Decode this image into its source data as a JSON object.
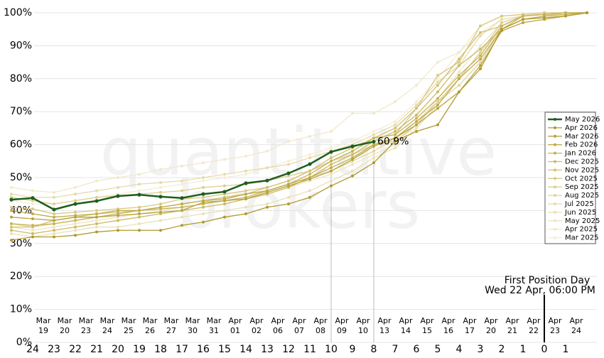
{
  "chart_data": {
    "type": "line",
    "watermark": [
      "quantitative",
      "brokers"
    ],
    "categories": [
      null,
      "24",
      "23",
      "22",
      "21",
      "20",
      "19",
      "18",
      "17",
      "16",
      "15",
      "14",
      "13",
      "12",
      "11",
      "10",
      "9",
      "8",
      "7",
      "6",
      "5",
      "4",
      "3",
      "2",
      "1",
      "0",
      "1",
      null
    ],
    "date_labels": [
      [
        "Mar",
        "19"
      ],
      [
        "Mar",
        "20"
      ],
      [
        "Mar",
        "23"
      ],
      [
        "Mar",
        "24"
      ],
      [
        "Mar",
        "25"
      ],
      [
        "Mar",
        "26"
      ],
      [
        "Mar",
        "27"
      ],
      [
        "Mar",
        "30"
      ],
      [
        "Mar",
        "31"
      ],
      [
        "Apr",
        "01"
      ],
      [
        "Apr",
        "02"
      ],
      [
        "Apr",
        "06"
      ],
      [
        "Apr",
        "07"
      ],
      [
        "Apr",
        "08"
      ],
      [
        "Apr",
        "09"
      ],
      [
        "Apr",
        "10"
      ],
      [
        "Apr",
        "13"
      ],
      [
        "Apr",
        "14"
      ],
      [
        "Apr",
        "15"
      ],
      [
        "Apr",
        "16"
      ],
      [
        "Apr",
        "17"
      ],
      [
        "Apr",
        "20"
      ],
      [
        "Apr",
        "21"
      ],
      [
        "Apr",
        "22"
      ],
      [
        "Apr",
        "23"
      ],
      [
        "Apr",
        "24"
      ]
    ],
    "ylim": [
      0,
      100
    ],
    "yticks": [
      {
        "value": 0,
        "label": "0%"
      },
      {
        "value": 10,
        "label": "10%"
      },
      {
        "value": 20,
        "label": "20%"
      },
      {
        "value": 30,
        "label": "30%"
      },
      {
        "value": 40,
        "label": "40%"
      },
      {
        "value": 50,
        "label": "50%"
      },
      {
        "value": 60,
        "label": "60%"
      },
      {
        "value": 70,
        "label": "70%"
      },
      {
        "value": 80,
        "label": "80%"
      },
      {
        "value": 90,
        "label": "90%"
      },
      {
        "value": 100,
        "label": "100%"
      }
    ],
    "grid": true,
    "legend": "right",
    "annotation": {
      "title": "First Position Day",
      "subtitle": "Wed 22 Apr, 06:00 PM"
    },
    "series": [
      {
        "name": "May 2026",
        "color": "#1e5e1e",
        "values": [
          43.3,
          43.8,
          40.3,
          42.0,
          42.9,
          44.4,
          44.8,
          44.2,
          43.8,
          45.0,
          45.7,
          48.3,
          49.1,
          51.3,
          54.1,
          57.8,
          59.5,
          60.9,
          null,
          null,
          null,
          null,
          null,
          null,
          null,
          null,
          null,
          null
        ],
        "value_labels": [
          null,
          null,
          null,
          null,
          null,
          null,
          null,
          null,
          null,
          null,
          null,
          null,
          null,
          null,
          null,
          null,
          null,
          "60.9%",
          null,
          null,
          null,
          null,
          null,
          null,
          null,
          null,
          null,
          null
        ]
      },
      {
        "name": "Apr 2026",
        "color": "#b09a2e",
        "values": [
          31,
          32,
          32,
          32.5,
          33.5,
          34,
          34,
          34,
          35.5,
          36.5,
          38,
          39,
          41,
          42,
          44,
          47.5,
          50.5,
          54.5,
          61,
          64,
          66,
          76,
          83,
          95,
          98,
          98.5,
          99,
          100
        ]
      },
      {
        "name": "Mar 2026",
        "color": "#b8a33c",
        "values": [
          38,
          37.5,
          37,
          38,
          38,
          38.5,
          39,
          39.5,
          40,
          42.5,
          43,
          43.5,
          45.5,
          47.5,
          49.5,
          52,
          55.5,
          59.5,
          62,
          66,
          71,
          76,
          84,
          94.5,
          97,
          98,
          99,
          100
        ]
      },
      {
        "name": "Feb 2026",
        "color": "#bfab4a",
        "values": [
          40,
          39,
          38,
          38.5,
          39,
          40,
          40,
          41,
          42,
          43,
          43.5,
          45,
          46,
          48,
          50,
          53,
          56,
          60,
          62,
          67,
          72,
          80,
          86,
          95,
          98,
          99,
          99.5,
          100
        ]
      },
      {
        "name": "Jan 2026",
        "color": "#c6b358",
        "values": [
          36,
          35.5,
          36,
          37,
          38,
          39,
          40,
          40.5,
          41,
          42,
          43,
          44,
          46,
          48,
          51,
          55,
          58,
          62,
          63,
          68,
          74,
          81,
          87,
          96,
          99,
          99.5,
          100,
          100
        ]
      },
      {
        "name": "Dec 2025",
        "color": "#ccba66",
        "values": [
          34,
          33,
          34,
          35,
          36,
          37,
          38,
          39,
          40,
          41,
          42,
          43.5,
          45,
          47,
          50,
          54,
          57,
          61,
          64,
          69,
          76,
          84,
          89,
          95,
          99,
          99.5,
          100,
          100
        ]
      },
      {
        "name": "Nov 2025",
        "color": "#d2c174",
        "values": [
          35,
          35,
          37,
          38,
          39,
          39.5,
          40,
          41,
          42,
          43,
          44,
          45,
          47,
          49,
          52,
          56,
          59,
          62,
          65,
          71,
          78,
          86,
          94,
          96,
          99,
          99.5,
          100,
          100
        ]
      },
      {
        "name": "Oct 2025",
        "color": "#d8c882",
        "values": [
          41,
          40.5,
          39,
          39.5,
          40,
          40.5,
          41,
          42,
          43.5,
          44,
          45,
          46,
          47,
          49,
          52,
          55,
          58,
          62,
          63,
          71,
          81,
          85,
          96,
          99,
          99.5,
          100,
          100,
          100
        ]
      },
      {
        "name": "Sep 2025",
        "color": "#ddcf90",
        "values": [
          44,
          43,
          42,
          43,
          44,
          44.5,
          45,
          45.5,
          46,
          47,
          47.5,
          48,
          49,
          50.5,
          52,
          55,
          57,
          60,
          61,
          66,
          73,
          80,
          88,
          97,
          99,
          99.5,
          100,
          100
        ]
      },
      {
        "name": "Aug 2025",
        "color": "#e2d59d",
        "values": [
          36,
          35,
          36,
          37,
          38,
          39,
          40,
          41,
          42,
          43,
          44,
          45,
          46,
          48,
          50,
          52,
          55,
          58,
          62,
          67,
          73,
          78,
          85,
          95,
          98,
          99,
          100,
          100
        ]
      },
      {
        "name": "Jul 2025",
        "color": "#e6dbaa",
        "values": [
          45,
          44,
          44,
          45,
          46,
          47,
          48,
          48.5,
          49,
          50,
          51,
          52,
          53,
          54,
          56,
          58,
          60,
          63,
          66,
          72,
          79,
          84,
          93,
          98,
          99,
          99.5,
          100,
          100
        ]
      },
      {
        "name": "Jun 2025",
        "color": "#eae0b6",
        "values": [
          33,
          32,
          33,
          34,
          35,
          35,
          36,
          37,
          38,
          39,
          40,
          41,
          42,
          44,
          46,
          49,
          52,
          56,
          59,
          65,
          72,
          80,
          88,
          96,
          99,
          99.5,
          100,
          100
        ]
      },
      {
        "name": "May 2025",
        "color": "#eee5c2",
        "values": [
          35,
          34,
          35,
          36,
          37,
          38,
          39,
          40,
          41,
          42,
          43,
          44,
          45,
          47,
          49,
          51,
          54,
          57,
          60,
          66,
          74,
          82,
          90,
          97,
          99,
          100,
          100,
          100
        ]
      },
      {
        "name": "Apr 2025",
        "color": "#f1e9cc",
        "values": [
          47,
          46,
          45.5,
          47,
          49,
          50,
          51,
          52.5,
          53.5,
          54.5,
          55.5,
          56.5,
          58,
          61,
          62.5,
          64,
          69.5,
          69.5,
          73,
          78,
          85,
          88,
          96,
          99,
          99.5,
          100,
          100,
          100
        ]
      },
      {
        "name": "Mar 2025",
        "color": "#f4edd6",
        "values": [
          43,
          42,
          42,
          43,
          44,
          45,
          46,
          47,
          48,
          49,
          50,
          51,
          53,
          55,
          57,
          59,
          61,
          64,
          67,
          73,
          80,
          88,
          94,
          98,
          99,
          100,
          100,
          100
        ]
      }
    ]
  }
}
